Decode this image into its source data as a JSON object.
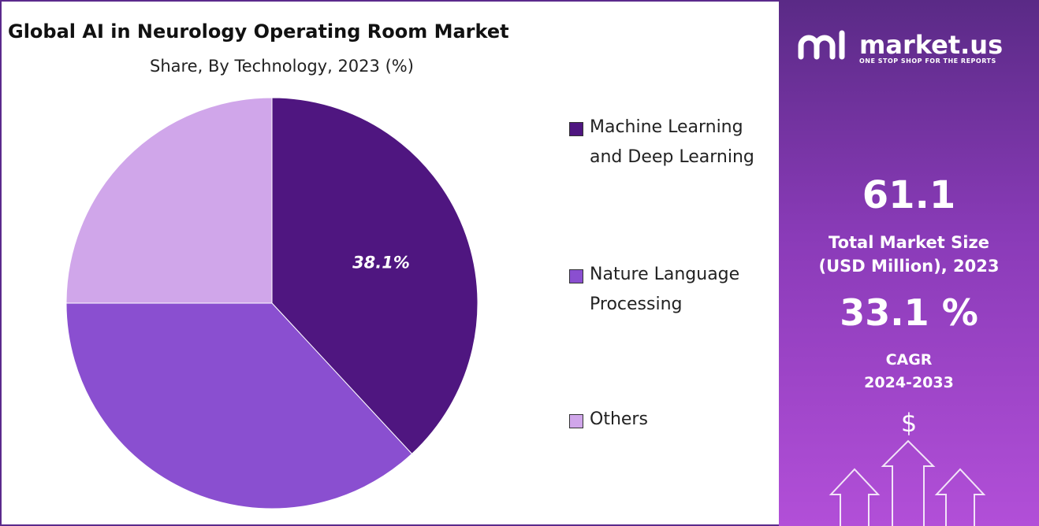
{
  "chart_data": {
    "type": "pie",
    "title": "Global AI in Neurology Operating Room Market",
    "subtitle": "Share, By Technology, 2023 (%)",
    "categories": [
      "Machine Learning and Deep Learning",
      "Nature Language Processing",
      "Others"
    ],
    "values": [
      38.1,
      36.9,
      25
    ],
    "value_labels": [
      "38.1%",
      null,
      null
    ],
    "colors": [
      "#4f1680",
      "#8a4fd0",
      "#d0a6ea"
    ]
  },
  "panel": {
    "brand": "market.us",
    "tagline": "ONE STOP SHOP FOR THE REPORTS",
    "market_size": "61.1",
    "market_size_label": [
      "Total Market Size",
      "(USD Million), 2023"
    ],
    "cagr": "33.1 %",
    "cagr_label": [
      "CAGR",
      "2024-2033"
    ],
    "icon_symbol": "$"
  }
}
